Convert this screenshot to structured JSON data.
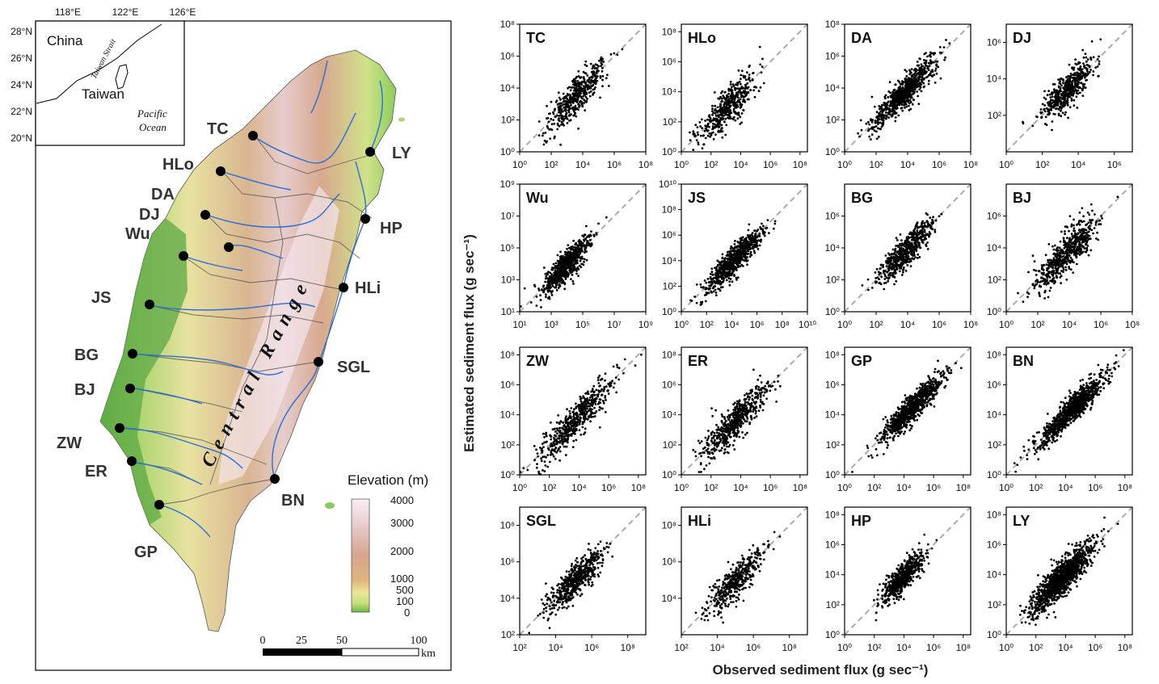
{
  "map": {
    "inset": {
      "lon_ticks": [
        "118°E",
        "122°E",
        "126°E"
      ],
      "lat_ticks": [
        "28°N",
        "26°N",
        "24°N",
        "22°N",
        "20°N"
      ],
      "labels": {
        "china": "China",
        "taiwan": "Taiwan",
        "strait": "Taiwan Strait",
        "pacific": "Pacific",
        "ocean": "Ocean"
      }
    },
    "range_label": "Central Range",
    "stations": [
      "TC",
      "HLo",
      "DA",
      "DJ",
      "Wu",
      "JS",
      "BG",
      "BJ",
      "ZW",
      "ER",
      "GP",
      "LY",
      "HP",
      "HLi",
      "SGL",
      "BN"
    ],
    "legend": {
      "title": "Elevation (m)",
      "ticks": [
        "4000",
        "3000",
        "2000",
        "1000",
        "500",
        "100",
        "0"
      ],
      "colors": [
        "#f8eef4",
        "#e6c8c8",
        "#d6a58e",
        "#e0b57c",
        "#ece49a",
        "#c8e07a",
        "#6ab84a"
      ]
    },
    "scalebar": {
      "ticks": [
        "0",
        "25",
        "50",
        "100"
      ],
      "unit": "km"
    }
  },
  "chart_data": [
    {
      "type": "scatter",
      "panel": "TC",
      "xticks": [
        "10⁰",
        "10²",
        "10⁴",
        "10⁶",
        "10⁸"
      ],
      "yticks": [
        "10⁰",
        "10²",
        "10⁴",
        "10⁶",
        "10⁸"
      ],
      "xlim": [
        0,
        8
      ],
      "ylim": [
        0,
        8
      ],
      "center": [
        3.6,
        3.5
      ],
      "spread": 0.9,
      "scatter": 0.55,
      "n": 450
    },
    {
      "type": "scatter",
      "panel": "HLo",
      "xticks": [
        "10⁰",
        "10²",
        "10⁴",
        "10⁶",
        "10⁸"
      ],
      "yticks": [
        "10⁰",
        "10²",
        "10⁴",
        "10⁶",
        "10⁸"
      ],
      "xlim": [
        0,
        8.5
      ],
      "ylim": [
        0,
        8.5
      ],
      "center": [
        3.2,
        3.1
      ],
      "spread": 1.0,
      "scatter": 0.6,
      "n": 450
    },
    {
      "type": "scatter",
      "panel": "DA",
      "xticks": [
        "10⁰",
        "10²",
        "10⁴",
        "10⁶",
        "10⁸"
      ],
      "yticks": [
        "10⁰",
        "10²",
        "10⁴",
        "10⁶",
        "10⁸"
      ],
      "xlim": [
        0,
        8
      ],
      "ylim": [
        0,
        8
      ],
      "center": [
        3.8,
        3.7
      ],
      "spread": 1.0,
      "scatter": 0.45,
      "n": 750
    },
    {
      "type": "scatter",
      "panel": "DJ",
      "xticks": [
        "10⁰",
        "10²",
        "10⁴",
        "10⁶"
      ],
      "yticks": [
        "10²",
        "10⁴",
        "10⁶"
      ],
      "xlim": [
        0,
        7
      ],
      "ylim": [
        0,
        7
      ],
      "center": [
        3.4,
        3.4
      ],
      "spread": 0.7,
      "scatter": 0.45,
      "n": 500
    },
    {
      "type": "scatter",
      "panel": "Wu",
      "xticks": [
        "10¹",
        "10³",
        "10⁵",
        "10⁷",
        "10⁹"
      ],
      "yticks": [
        "10¹",
        "10³",
        "10⁵",
        "10⁷",
        "10⁹"
      ],
      "xlim": [
        1,
        9
      ],
      "ylim": [
        1,
        9
      ],
      "center": [
        4.0,
        3.9
      ],
      "spread": 0.75,
      "scatter": 0.45,
      "n": 650
    },
    {
      "type": "scatter",
      "panel": "JS",
      "xticks": [
        "10⁰",
        "10²",
        "10⁴",
        "10⁶",
        "10⁸",
        "10¹⁰"
      ],
      "yticks": [
        "10⁰",
        "10²",
        "10⁴",
        "10⁶",
        "10⁸",
        "10¹⁰"
      ],
      "xlim": [
        0,
        10
      ],
      "ylim": [
        0,
        10
      ],
      "center": [
        4.2,
        4.1
      ],
      "spread": 1.1,
      "scatter": 0.5,
      "n": 750
    },
    {
      "type": "scatter",
      "panel": "BG",
      "xticks": [
        "10⁰",
        "10²",
        "10⁴",
        "10⁶",
        "10⁸"
      ],
      "yticks": [
        "10⁰",
        "10²",
        "10⁴",
        "10⁶"
      ],
      "xlim": [
        0,
        8
      ],
      "ylim": [
        0,
        8
      ],
      "center": [
        3.9,
        3.8
      ],
      "spread": 0.85,
      "scatter": 0.5,
      "n": 550
    },
    {
      "type": "scatter",
      "panel": "BJ",
      "xticks": [
        "10⁰",
        "10²",
        "10⁴",
        "10⁶",
        "10⁸"
      ],
      "yticks": [
        "10⁰",
        "10²",
        "10⁴",
        "10⁶"
      ],
      "xlim": [
        0,
        8
      ],
      "ylim": [
        0,
        8
      ],
      "center": [
        3.8,
        3.6
      ],
      "spread": 1.0,
      "scatter": 0.55,
      "n": 550
    },
    {
      "type": "scatter",
      "panel": "ZW",
      "xticks": [
        "10⁰",
        "10²",
        "10⁴",
        "10⁶",
        "10⁸"
      ],
      "yticks": [
        "10⁰",
        "10²",
        "10⁴",
        "10⁶",
        "10⁸"
      ],
      "xlim": [
        0,
        8.5
      ],
      "ylim": [
        0,
        8.5
      ],
      "center": [
        3.8,
        3.7
      ],
      "spread": 1.3,
      "scatter": 0.6,
      "n": 550
    },
    {
      "type": "scatter",
      "panel": "ER",
      "xticks": [
        "10⁰",
        "10²",
        "10⁴",
        "10⁶",
        "10⁸"
      ],
      "yticks": [
        "10⁰",
        "10²",
        "10⁴",
        "10⁶",
        "10⁸"
      ],
      "xlim": [
        0,
        8.5
      ],
      "ylim": [
        0,
        8.5
      ],
      "center": [
        3.6,
        3.5
      ],
      "spread": 1.1,
      "scatter": 0.6,
      "n": 550
    },
    {
      "type": "scatter",
      "panel": "GP",
      "xticks": [
        "10⁰",
        "10²",
        "10⁴",
        "10⁶",
        "10⁸"
      ],
      "yticks": [
        "10⁰",
        "10²",
        "10⁴",
        "10⁶",
        "10⁸"
      ],
      "xlim": [
        0,
        8.5
      ],
      "ylim": [
        0,
        8.5
      ],
      "center": [
        4.6,
        4.5
      ],
      "spread": 1.0,
      "scatter": 0.4,
      "n": 900
    },
    {
      "type": "scatter",
      "panel": "BN",
      "xticks": [
        "10⁰",
        "10²",
        "10⁴",
        "10⁶",
        "10⁸"
      ],
      "yticks": [
        "10⁰",
        "10²",
        "10⁴",
        "10⁶",
        "10⁸"
      ],
      "xlim": [
        0,
        8.5
      ],
      "ylim": [
        0,
        8.5
      ],
      "center": [
        4.4,
        4.3
      ],
      "spread": 1.1,
      "scatter": 0.4,
      "n": 950
    },
    {
      "type": "scatter",
      "panel": "SGL",
      "xticks": [
        "10²",
        "10⁴",
        "10⁶",
        "10⁸"
      ],
      "yticks": [
        "10²",
        "10⁴",
        "10⁶",
        "10⁸"
      ],
      "xlim": [
        2,
        9
      ],
      "ylim": [
        2,
        9
      ],
      "center": [
        5.1,
        5.0
      ],
      "spread": 0.75,
      "scatter": 0.45,
      "n": 550
    },
    {
      "type": "scatter",
      "panel": "HLi",
      "xticks": [
        "10²",
        "10⁴",
        "10⁶",
        "10⁸"
      ],
      "yticks": [
        "10⁴",
        "10⁶",
        "10⁸"
      ],
      "xlim": [
        2,
        9
      ],
      "ylim": [
        2,
        9
      ],
      "center": [
        5.0,
        4.9
      ],
      "spread": 0.75,
      "scatter": 0.45,
      "n": 450
    },
    {
      "type": "scatter",
      "panel": "HP",
      "xticks": [
        "10⁰",
        "10²",
        "10⁴",
        "10⁶",
        "10⁸"
      ],
      "yticks": [
        "10⁰",
        "10²",
        "10⁴",
        "10⁶",
        "10⁸"
      ],
      "xlim": [
        0,
        8.5
      ],
      "ylim": [
        0,
        8.5
      ],
      "center": [
        3.9,
        3.8
      ],
      "spread": 0.7,
      "scatter": 0.45,
      "n": 650
    },
    {
      "type": "scatter",
      "panel": "LY",
      "xticks": [
        "10⁰",
        "10²",
        "10⁴",
        "10⁶",
        "10⁸"
      ],
      "yticks": [
        "10⁰",
        "10²",
        "10⁴",
        "10⁶",
        "10⁸"
      ],
      "xlim": [
        0,
        8.5
      ],
      "ylim": [
        0,
        8.5
      ],
      "center": [
        3.8,
        3.8
      ],
      "spread": 1.0,
      "scatter": 0.55,
      "n": 1200
    }
  ],
  "axes": {
    "xlabel": "Observed sediment flux (g sec⁻¹)",
    "ylabel": "Estimated sediment flux (g sec⁻¹)"
  },
  "colors": {
    "points": "#000000",
    "identity_line": "#aaaaaa",
    "land_low": "#6ab84a",
    "river": "#2a6fd6"
  }
}
